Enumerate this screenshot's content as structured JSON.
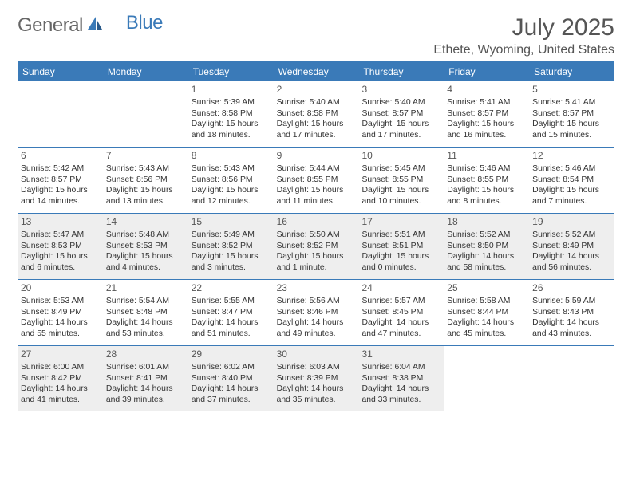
{
  "logo": {
    "general": "General",
    "blue": "Blue"
  },
  "title": "July 2025",
  "location": "Ethete, Wyoming, United States",
  "theme": {
    "accent": "#3a7ab8",
    "header_text": "#ffffff",
    "body_text": "#333333",
    "muted_text": "#555555",
    "shaded_bg": "#eeeeee",
    "page_bg": "#ffffff",
    "title_fontsize": 30,
    "location_fontsize": 16,
    "dayheader_fontsize": 12,
    "cell_fontsize": 10.4
  },
  "day_names": [
    "Sunday",
    "Monday",
    "Tuesday",
    "Wednesday",
    "Thursday",
    "Friday",
    "Saturday"
  ],
  "weeks": [
    {
      "shaded": false,
      "cells": [
        null,
        null,
        {
          "n": "1",
          "sr": "5:39 AM",
          "ss": "8:58 PM",
          "dl": "15 hours and 18 minutes."
        },
        {
          "n": "2",
          "sr": "5:40 AM",
          "ss": "8:58 PM",
          "dl": "15 hours and 17 minutes."
        },
        {
          "n": "3",
          "sr": "5:40 AM",
          "ss": "8:57 PM",
          "dl": "15 hours and 17 minutes."
        },
        {
          "n": "4",
          "sr": "5:41 AM",
          "ss": "8:57 PM",
          "dl": "15 hours and 16 minutes."
        },
        {
          "n": "5",
          "sr": "5:41 AM",
          "ss": "8:57 PM",
          "dl": "15 hours and 15 minutes."
        }
      ]
    },
    {
      "shaded": false,
      "cells": [
        {
          "n": "6",
          "sr": "5:42 AM",
          "ss": "8:57 PM",
          "dl": "15 hours and 14 minutes."
        },
        {
          "n": "7",
          "sr": "5:43 AM",
          "ss": "8:56 PM",
          "dl": "15 hours and 13 minutes."
        },
        {
          "n": "8",
          "sr": "5:43 AM",
          "ss": "8:56 PM",
          "dl": "15 hours and 12 minutes."
        },
        {
          "n": "9",
          "sr": "5:44 AM",
          "ss": "8:55 PM",
          "dl": "15 hours and 11 minutes."
        },
        {
          "n": "10",
          "sr": "5:45 AM",
          "ss": "8:55 PM",
          "dl": "15 hours and 10 minutes."
        },
        {
          "n": "11",
          "sr": "5:46 AM",
          "ss": "8:55 PM",
          "dl": "15 hours and 8 minutes."
        },
        {
          "n": "12",
          "sr": "5:46 AM",
          "ss": "8:54 PM",
          "dl": "15 hours and 7 minutes."
        }
      ]
    },
    {
      "shaded": true,
      "cells": [
        {
          "n": "13",
          "sr": "5:47 AM",
          "ss": "8:53 PM",
          "dl": "15 hours and 6 minutes."
        },
        {
          "n": "14",
          "sr": "5:48 AM",
          "ss": "8:53 PM",
          "dl": "15 hours and 4 minutes."
        },
        {
          "n": "15",
          "sr": "5:49 AM",
          "ss": "8:52 PM",
          "dl": "15 hours and 3 minutes."
        },
        {
          "n": "16",
          "sr": "5:50 AM",
          "ss": "8:52 PM",
          "dl": "15 hours and 1 minute."
        },
        {
          "n": "17",
          "sr": "5:51 AM",
          "ss": "8:51 PM",
          "dl": "15 hours and 0 minutes."
        },
        {
          "n": "18",
          "sr": "5:52 AM",
          "ss": "8:50 PM",
          "dl": "14 hours and 58 minutes."
        },
        {
          "n": "19",
          "sr": "5:52 AM",
          "ss": "8:49 PM",
          "dl": "14 hours and 56 minutes."
        }
      ]
    },
    {
      "shaded": false,
      "cells": [
        {
          "n": "20",
          "sr": "5:53 AM",
          "ss": "8:49 PM",
          "dl": "14 hours and 55 minutes."
        },
        {
          "n": "21",
          "sr": "5:54 AM",
          "ss": "8:48 PM",
          "dl": "14 hours and 53 minutes."
        },
        {
          "n": "22",
          "sr": "5:55 AM",
          "ss": "8:47 PM",
          "dl": "14 hours and 51 minutes."
        },
        {
          "n": "23",
          "sr": "5:56 AM",
          "ss": "8:46 PM",
          "dl": "14 hours and 49 minutes."
        },
        {
          "n": "24",
          "sr": "5:57 AM",
          "ss": "8:45 PM",
          "dl": "14 hours and 47 minutes."
        },
        {
          "n": "25",
          "sr": "5:58 AM",
          "ss": "8:44 PM",
          "dl": "14 hours and 45 minutes."
        },
        {
          "n": "26",
          "sr": "5:59 AM",
          "ss": "8:43 PM",
          "dl": "14 hours and 43 minutes."
        }
      ]
    },
    {
      "shaded": true,
      "cells": [
        {
          "n": "27",
          "sr": "6:00 AM",
          "ss": "8:42 PM",
          "dl": "14 hours and 41 minutes."
        },
        {
          "n": "28",
          "sr": "6:01 AM",
          "ss": "8:41 PM",
          "dl": "14 hours and 39 minutes."
        },
        {
          "n": "29",
          "sr": "6:02 AM",
          "ss": "8:40 PM",
          "dl": "14 hours and 37 minutes."
        },
        {
          "n": "30",
          "sr": "6:03 AM",
          "ss": "8:39 PM",
          "dl": "14 hours and 35 minutes."
        },
        {
          "n": "31",
          "sr": "6:04 AM",
          "ss": "8:38 PM",
          "dl": "14 hours and 33 minutes."
        },
        null,
        null
      ]
    }
  ],
  "labels": {
    "sunrise_prefix": "Sunrise: ",
    "sunset_prefix": "Sunset: ",
    "daylight_prefix": "Daylight: "
  }
}
